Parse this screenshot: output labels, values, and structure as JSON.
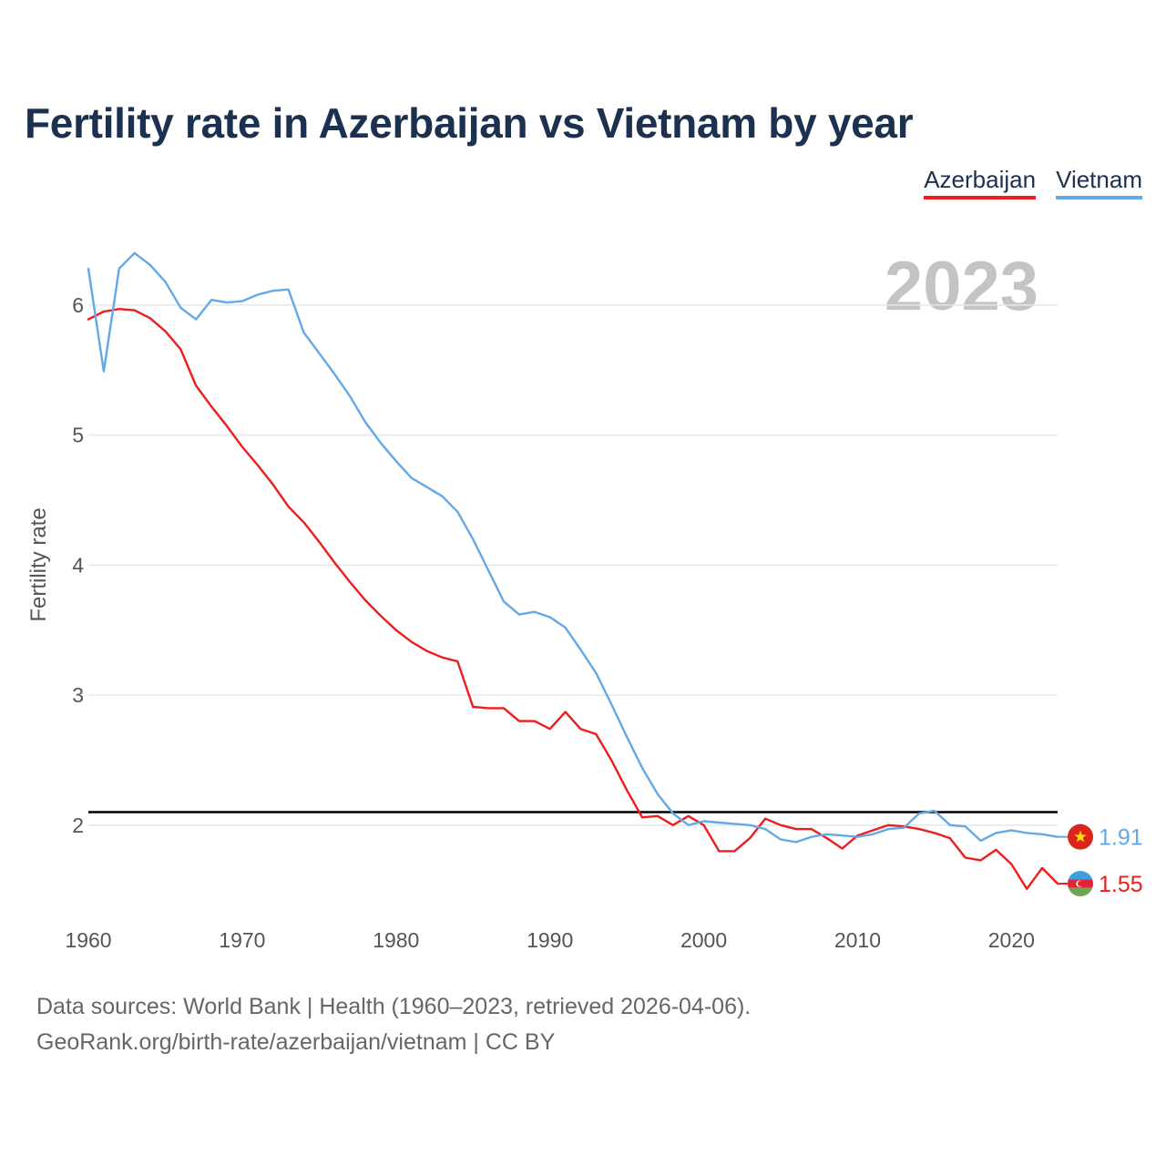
{
  "title": "Fertility rate in Azerbaijan vs Vietnam by year",
  "legend": {
    "azerbaijan": "Azerbaijan",
    "vietnam": "Vietnam"
  },
  "year_label": "2023",
  "source_line1": "Data sources: World Bank | Health (1960–2023, retrieved 2026-04-06).",
  "source_line2": "GeoRank.org/birth-rate/azerbaijan/vietnam | CC BY",
  "colors": {
    "azerbaijan": "#ee1c1c",
    "vietnam": "#64a8e6",
    "reference": "#000000",
    "grid": "#e6e6e6"
  },
  "chart_data": {
    "type": "line",
    "title": "Fertility rate in Azerbaijan vs Vietnam by year",
    "xlabel": "",
    "ylabel": "Fertility rate",
    "xlim": [
      1960,
      2023
    ],
    "ylim": [
      1.2,
      6.7
    ],
    "xticks": [
      1960,
      1970,
      1980,
      1990,
      2000,
      2010,
      2020
    ],
    "yticks": [
      2,
      3,
      4,
      5,
      6
    ],
    "grid": true,
    "reference_line": 2.1,
    "x_start": 1960,
    "series": [
      {
        "name": "Azerbaijan",
        "key": "azerbaijan",
        "end_label": "1.55",
        "values": [
          5.89,
          5.95,
          5.97,
          5.96,
          5.9,
          5.8,
          5.66,
          5.38,
          5.22,
          5.07,
          4.91,
          4.77,
          4.62,
          4.45,
          4.33,
          4.18,
          4.02,
          3.87,
          3.73,
          3.61,
          3.5,
          3.41,
          3.34,
          3.29,
          3.26,
          2.91,
          2.9,
          2.9,
          2.8,
          2.8,
          2.74,
          2.87,
          2.74,
          2.7,
          2.5,
          2.27,
          2.06,
          2.07,
          2.0,
          2.07,
          2.0,
          1.8,
          1.8,
          1.9,
          2.05,
          2.0,
          1.97,
          1.97,
          1.9,
          1.82,
          1.92,
          1.96,
          2.0,
          1.99,
          1.97,
          1.94,
          1.9,
          1.75,
          1.73,
          1.81,
          1.7,
          1.51,
          1.67,
          1.55
        ]
      },
      {
        "name": "Vietnam",
        "key": "vietnam",
        "end_label": "1.91",
        "values": [
          6.28,
          5.49,
          6.28,
          6.4,
          6.31,
          6.18,
          5.98,
          5.89,
          6.04,
          6.02,
          6.03,
          6.08,
          6.11,
          6.12,
          5.79,
          5.63,
          5.47,
          5.3,
          5.1,
          4.94,
          4.8,
          4.67,
          4.6,
          4.53,
          4.41,
          4.2,
          3.96,
          3.72,
          3.62,
          3.64,
          3.6,
          3.52,
          3.35,
          3.17,
          2.93,
          2.68,
          2.44,
          2.24,
          2.09,
          2.0,
          2.03,
          2.02,
          2.01,
          2.0,
          1.97,
          1.89,
          1.87,
          1.91,
          1.93,
          1.92,
          1.91,
          1.93,
          1.97,
          1.98,
          2.09,
          2.11,
          2.0,
          1.99,
          1.88,
          1.94,
          1.96,
          1.94,
          1.93,
          1.91
        ]
      }
    ]
  }
}
